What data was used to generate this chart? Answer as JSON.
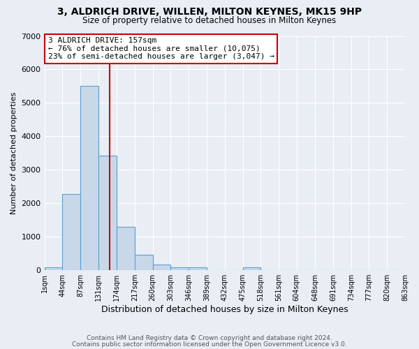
{
  "title": "3, ALDRICH DRIVE, WILLEN, MILTON KEYNES, MK15 9HP",
  "subtitle": "Size of property relative to detached houses in Milton Keynes",
  "xlabel": "Distribution of detached houses by size in Milton Keynes",
  "ylabel": "Number of detached properties",
  "bin_edges": [
    1,
    44,
    87,
    131,
    174,
    217,
    260,
    303,
    346,
    389,
    432,
    475,
    518,
    561,
    604,
    648,
    691,
    734,
    777,
    820,
    863
  ],
  "bar_heights": [
    75,
    2275,
    5500,
    3425,
    1300,
    460,
    175,
    75,
    75,
    0,
    0,
    75,
    0,
    0,
    0,
    0,
    0,
    0,
    0,
    0
  ],
  "bar_color": "#c8d8e8",
  "bar_edge_color": "#5a9fd4",
  "property_size": 157,
  "vline_color": "#cc0000",
  "annotation_text": "3 ALDRICH DRIVE: 157sqm\n← 76% of detached houses are smaller (10,075)\n23% of semi-detached houses are larger (3,047) →",
  "annotation_box_color": "#ffffff",
  "annotation_box_edge_color": "#cc0000",
  "ylim": [
    0,
    7000
  ],
  "yticks": [
    0,
    1000,
    2000,
    3000,
    4000,
    5000,
    6000,
    7000
  ],
  "xtick_labels": [
    "1sqm",
    "44sqm",
    "87sqm",
    "131sqm",
    "174sqm",
    "217sqm",
    "260sqm",
    "303sqm",
    "346sqm",
    "389sqm",
    "432sqm",
    "475sqm",
    "518sqm",
    "561sqm",
    "604sqm",
    "648sqm",
    "691sqm",
    "734sqm",
    "777sqm",
    "820sqm",
    "863sqm"
  ],
  "background_color": "#e8eef4",
  "grid_color": "#ffffff",
  "footer_line1": "Contains HM Land Registry data © Crown copyright and database right 2024.",
  "footer_line2": "Contains public sector information licensed under the Open Government Licence v3.0."
}
